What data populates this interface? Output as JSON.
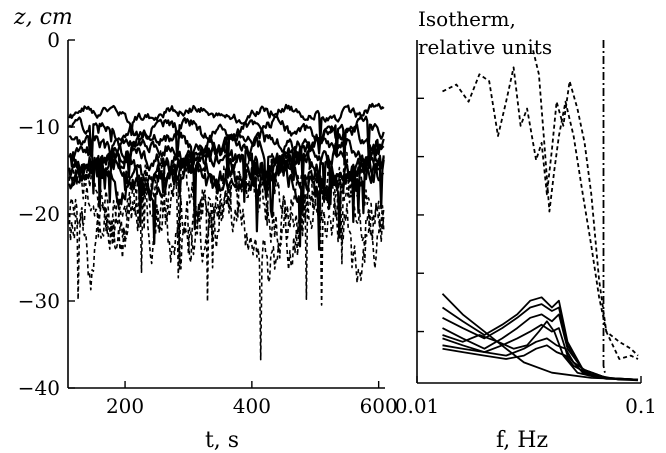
{
  "chart_data": [
    {
      "type": "line",
      "xlabel": "t, s",
      "ylabel": "z, cm",
      "xlim": [
        110,
        610
      ],
      "ylim": [
        -40,
        0
      ],
      "xticks": [
        200,
        400,
        600
      ],
      "yticks": [
        0,
        -10,
        -20,
        -30,
        -40
      ],
      "series": [
        {
          "style": "solid",
          "base": -8.5,
          "amp": 0.8,
          "noise": 0.4,
          "seed": 1
        },
        {
          "style": "solid",
          "base": -10.2,
          "amp": 1.0,
          "noise": 0.5,
          "seed": 2
        },
        {
          "style": "solid",
          "base": -11.6,
          "amp": 1.1,
          "noise": 0.6,
          "seed": 3
        },
        {
          "style": "solid",
          "base": -12.8,
          "amp": 1.3,
          "noise": 0.7,
          "seed": 4
        },
        {
          "style": "solid",
          "base": -13.8,
          "amp": 1.5,
          "noise": 0.8,
          "seed": 5
        },
        {
          "style": "solid",
          "base": -14.6,
          "amp": 1.7,
          "noise": 0.9,
          "seed": 6
        },
        {
          "style": "solid",
          "base": -15.3,
          "amp": 1.8,
          "noise": 1.0,
          "seed": 7
        },
        {
          "style": "solid",
          "base": -16.0,
          "amp": 1.9,
          "noise": 1.1,
          "seed": 8
        },
        {
          "style": "dashed",
          "base": -17.5,
          "amp": 2.5,
          "noise": 2.0,
          "seed": 9
        },
        {
          "style": "dashed",
          "base": -19.5,
          "amp": 3.0,
          "noise": 2.5,
          "seed": 10
        },
        {
          "style": "dashed",
          "base": -21.5,
          "amp": 3.5,
          "noise": 3.0,
          "seed": 11
        }
      ]
    },
    {
      "type": "line",
      "xlabel": "f, Hz",
      "annotation": [
        "Isotherm,",
        "relative units"
      ],
      "xscale": "log",
      "xlim": [
        0.01,
        0.1
      ],
      "xticks": [
        0.01,
        0.1
      ],
      "xtick_labels": [
        "0.01",
        "0.1"
      ],
      "y_minor_ticks": 5,
      "series": [
        {
          "style": "dashed",
          "points": [
            [
              0.013,
              0.15
            ],
            [
              0.015,
              0.13
            ],
            [
              0.017,
              0.18
            ],
            [
              0.019,
              0.1
            ],
            [
              0.021,
              0.12
            ],
            [
              0.023,
              0.28
            ],
            [
              0.025,
              0.18
            ],
            [
              0.027,
              0.08
            ],
            [
              0.029,
              0.25
            ],
            [
              0.031,
              0.2
            ],
            [
              0.034,
              0.35
            ],
            [
              0.036,
              0.3
            ],
            [
              0.038,
              0.45
            ],
            [
              0.04,
              0.32
            ],
            [
              0.042,
              0.18
            ],
            [
              0.045,
              0.25
            ],
            [
              0.048,
              0.12
            ],
            [
              0.052,
              0.2
            ],
            [
              0.056,
              0.3
            ],
            [
              0.06,
              0.45
            ],
            [
              0.065,
              0.7
            ],
            [
              0.07,
              0.85
            ],
            [
              0.08,
              0.93
            ],
            [
              0.09,
              0.92
            ],
            [
              0.097,
              0.93
            ]
          ]
        },
        {
          "style": "dashed",
          "points": [
            [
              0.033,
              0.03
            ],
            [
              0.035,
              0.1
            ],
            [
              0.037,
              0.3
            ],
            [
              0.039,
              0.5
            ],
            [
              0.041,
              0.38
            ],
            [
              0.043,
              0.28
            ],
            [
              0.046,
              0.18
            ],
            [
              0.05,
              0.28
            ],
            [
              0.055,
              0.45
            ],
            [
              0.06,
              0.6
            ],
            [
              0.065,
              0.75
            ],
            [
              0.07,
              0.85
            ],
            [
              0.08,
              0.88
            ],
            [
              0.09,
              0.9
            ],
            [
              0.097,
              0.92
            ]
          ]
        },
        {
          "style": "dashdot",
          "points": [
            [
              0.068,
              0.0
            ],
            [
              0.068,
              0.95
            ],
            [
              0.069,
              0.97
            ]
          ]
        },
        {
          "style": "solid",
          "points": [
            [
              0.013,
              0.74
            ],
            [
              0.016,
              0.8
            ],
            [
              0.02,
              0.85
            ],
            [
              0.025,
              0.9
            ],
            [
              0.03,
              0.94
            ],
            [
              0.04,
              0.97
            ],
            [
              0.06,
              0.985
            ],
            [
              0.097,
              0.99
            ]
          ]
        },
        {
          "style": "solid",
          "points": [
            [
              0.013,
              0.78
            ],
            [
              0.016,
              0.82
            ],
            [
              0.02,
              0.86
            ],
            [
              0.024,
              0.83
            ],
            [
              0.028,
              0.8
            ],
            [
              0.032,
              0.76
            ],
            [
              0.036,
              0.75
            ],
            [
              0.04,
              0.78
            ],
            [
              0.043,
              0.76
            ],
            [
              0.047,
              0.88
            ],
            [
              0.055,
              0.96
            ],
            [
              0.07,
              0.985
            ],
            [
              0.097,
              0.99
            ]
          ]
        },
        {
          "style": "solid",
          "points": [
            [
              0.013,
              0.81
            ],
            [
              0.016,
              0.84
            ],
            [
              0.02,
              0.87
            ],
            [
              0.024,
              0.84
            ],
            [
              0.028,
              0.81
            ],
            [
              0.032,
              0.78
            ],
            [
              0.036,
              0.77
            ],
            [
              0.04,
              0.79
            ],
            [
              0.043,
              0.78
            ],
            [
              0.047,
              0.89
            ],
            [
              0.055,
              0.96
            ],
            [
              0.07,
              0.985
            ],
            [
              0.097,
              0.99
            ]
          ]
        },
        {
          "style": "solid",
          "points": [
            [
              0.013,
              0.84
            ],
            [
              0.016,
              0.87
            ],
            [
              0.02,
              0.9
            ],
            [
              0.024,
              0.87
            ],
            [
              0.028,
              0.84
            ],
            [
              0.032,
              0.81
            ],
            [
              0.036,
              0.8
            ],
            [
              0.04,
              0.82
            ],
            [
              0.043,
              0.8
            ],
            [
              0.047,
              0.9
            ],
            [
              0.055,
              0.96
            ],
            [
              0.07,
              0.985
            ],
            [
              0.097,
              0.99
            ]
          ]
        },
        {
          "style": "solid",
          "points": [
            [
              0.013,
              0.87
            ],
            [
              0.016,
              0.89
            ],
            [
              0.02,
              0.91
            ],
            [
              0.024,
              0.89
            ],
            [
              0.028,
              0.87
            ],
            [
              0.032,
              0.85
            ],
            [
              0.036,
              0.83
            ],
            [
              0.04,
              0.85
            ],
            [
              0.043,
              0.84
            ],
            [
              0.047,
              0.92
            ],
            [
              0.055,
              0.97
            ],
            [
              0.07,
              0.988
            ],
            [
              0.097,
              0.99
            ]
          ]
        },
        {
          "style": "solid",
          "points": [
            [
              0.013,
              0.89
            ],
            [
              0.016,
              0.9
            ],
            [
              0.02,
              0.91
            ],
            [
              0.025,
              0.92
            ],
            [
              0.03,
              0.9
            ],
            [
              0.034,
              0.88
            ],
            [
              0.038,
              0.87
            ],
            [
              0.042,
              0.89
            ],
            [
              0.046,
              0.9
            ],
            [
              0.05,
              0.94
            ],
            [
              0.06,
              0.975
            ],
            [
              0.08,
              0.99
            ],
            [
              0.097,
              0.99
            ]
          ]
        },
        {
          "style": "solid",
          "points": [
            [
              0.013,
              0.9
            ],
            [
              0.016,
              0.91
            ],
            [
              0.02,
              0.92
            ],
            [
              0.025,
              0.93
            ],
            [
              0.03,
              0.92
            ],
            [
              0.034,
              0.9
            ],
            [
              0.038,
              0.89
            ],
            [
              0.042,
              0.91
            ],
            [
              0.046,
              0.92
            ],
            [
              0.05,
              0.95
            ],
            [
              0.06,
              0.978
            ],
            [
              0.08,
              0.99
            ],
            [
              0.097,
              0.992
            ]
          ]
        },
        {
          "style": "solid",
          "points": [
            [
              0.013,
              0.86
            ],
            [
              0.016,
              0.88
            ],
            [
              0.019,
              0.86
            ],
            [
              0.023,
              0.88
            ],
            [
              0.027,
              0.9
            ],
            [
              0.031,
              0.89
            ],
            [
              0.035,
              0.85
            ],
            [
              0.038,
              0.82
            ],
            [
              0.041,
              0.85
            ],
            [
              0.045,
              0.92
            ],
            [
              0.052,
              0.97
            ],
            [
              0.065,
              0.985
            ],
            [
              0.097,
              0.99
            ]
          ]
        }
      ]
    }
  ]
}
